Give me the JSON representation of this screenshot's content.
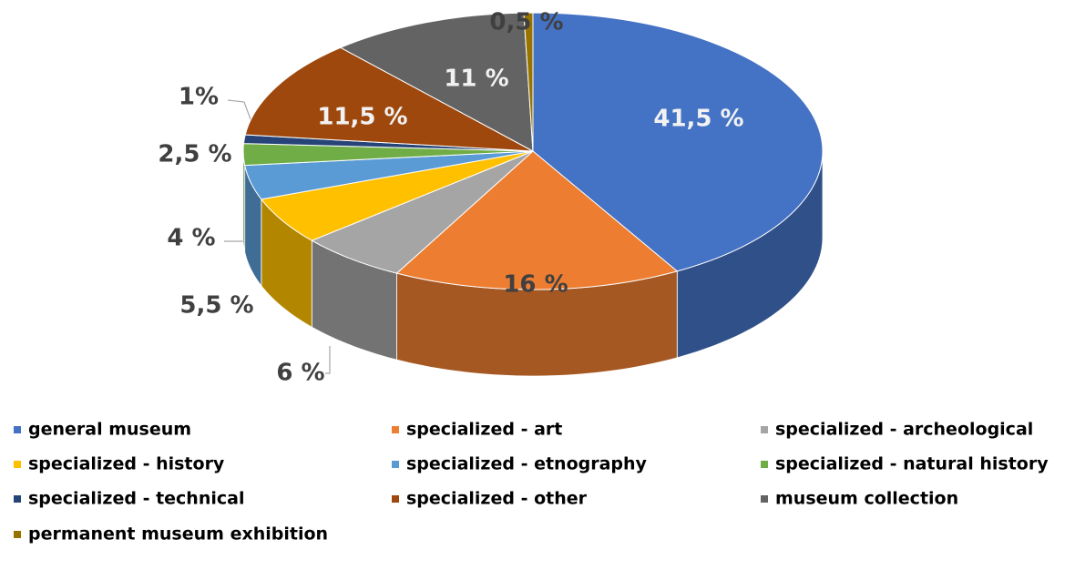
{
  "chart_data": {
    "type": "pie3d",
    "categories": [
      "general museum",
      "specialized - art",
      "specialized - archeological",
      "specialized - history",
      "specialized - etnography",
      "specialized - natural history",
      "specialized - technical",
      "specialized - other",
      "museum collection",
      "permanent museum exhibition"
    ],
    "values": [
      41.5,
      16,
      6,
      5.5,
      4,
      2.5,
      1,
      11.5,
      11,
      0.5
    ],
    "value_labels": [
      "41,5 %",
      "16 %",
      "6 %",
      "5,5 %",
      "4 %",
      "2,5 %",
      "1%",
      "11,5 %",
      "11 %",
      "0,5 %"
    ],
    "colors": [
      "#4472c4",
      "#ed7d31",
      "#a5a5a5",
      "#ffc000",
      "#5b9bd5",
      "#70ad47",
      "#264478",
      "#9e480e",
      "#636363",
      "#997300"
    ],
    "legend": "bottom"
  }
}
